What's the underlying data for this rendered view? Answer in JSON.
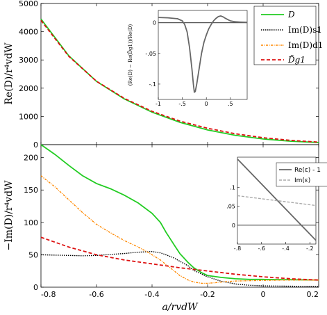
{
  "chart_data": [
    {
      "id": "top",
      "type": "line",
      "ylabel": "Re(D)/r⁴vdW",
      "xlim": [
        -0.8,
        0.2
      ],
      "ylim": [
        0,
        5000
      ],
      "yticks": [
        0,
        1000,
        2000,
        3000,
        4000,
        5000
      ],
      "xticks": [
        -0.8,
        -0.6,
        -0.4,
        -0.2,
        0,
        0.2
      ],
      "show_xticklabels": false,
      "legend": "top-right",
      "series": [
        {
          "name": "D",
          "color": "#22cc22",
          "dash": "",
          "width": 1.8,
          "x": [
            -0.8,
            -0.7,
            -0.6,
            -0.5,
            -0.4,
            -0.3,
            -0.2,
            -0.1,
            0,
            0.1,
            0.2
          ],
          "y": [
            4450,
            3150,
            2240,
            1620,
            1150,
            790,
            520,
            330,
            200,
            120,
            75
          ]
        },
        {
          "name": "Im(D)s1",
          "color": "#000000",
          "dash": "1.5,1.5",
          "width": 1.4,
          "legend_only": true,
          "x": [],
          "y": []
        },
        {
          "name": "Im(D)d1",
          "color": "#ff8800",
          "dash": "3,1.5,1,1.5",
          "width": 1.4,
          "legend_only": true,
          "x": [],
          "y": []
        },
        {
          "name": "D̃g1",
          "color": "#dd1111",
          "dash": "5,3",
          "width": 1.8,
          "x": [
            -0.8,
            -0.7,
            -0.6,
            -0.5,
            -0.4,
            -0.3,
            -0.2,
            -0.1,
            0,
            0.1,
            0.2
          ],
          "y": [
            4400,
            3130,
            2245,
            1640,
            1180,
            835,
            580,
            385,
            245,
            150,
            90
          ]
        }
      ],
      "inset": {
        "ylabel": "(Re(D) − Re(D̃g1))/Re(D)",
        "xlim": [
          -1,
          0.85
        ],
        "ylim": [
          -0.125,
          0.02
        ],
        "xticks": [
          -1,
          -0.5,
          0,
          0.5
        ],
        "yticks": [
          0,
          -0.05,
          -0.1
        ],
        "series": [
          {
            "name": "",
            "color": "#666666",
            "dash": "",
            "width": 1.8,
            "x": [
              -1,
              -0.8,
              -0.6,
              -0.5,
              -0.45,
              -0.4,
              -0.35,
              -0.3,
              -0.27,
              -0.25,
              -0.23,
              -0.2,
              -0.15,
              -0.1,
              -0.05,
              0,
              0.05,
              0.1,
              0.15,
              0.2,
              0.25,
              0.3,
              0.35,
              0.4,
              0.5,
              0.6,
              0.7,
              0.85
            ],
            "y": [
              0.0085,
              0.008,
              0.0065,
              0.003,
              -0.003,
              -0.015,
              -0.04,
              -0.075,
              -0.1,
              -0.113,
              -0.112,
              -0.1,
              -0.075,
              -0.05,
              -0.032,
              -0.02,
              -0.01,
              -0.003,
              0.003,
              0.007,
              0.01,
              0.011,
              0.0095,
              0.007,
              0.003,
              0.0015,
              0.001,
              0.0005
            ]
          }
        ],
        "hline": 0
      }
    },
    {
      "id": "bottom",
      "type": "line",
      "ylabel": "−Im(D)/r⁴vdW",
      "xlabel": "a/rvdW",
      "xlim": [
        -0.8,
        0.2
      ],
      "ylim": [
        0,
        220
      ],
      "yticks": [
        0,
        50,
        100,
        150,
        200
      ],
      "xticks": [
        -0.8,
        -0.6,
        -0.4,
        -0.2,
        0,
        0.2
      ],
      "xticklabels": [
        "-0.8",
        "-0.6",
        "-0.4",
        "-0.2",
        "0",
        "0.2"
      ],
      "show_xticklabels": true,
      "series": [
        {
          "name": "D",
          "color": "#22cc22",
          "dash": "",
          "width": 1.8,
          "x": [
            -0.8,
            -0.75,
            -0.7,
            -0.65,
            -0.6,
            -0.55,
            -0.5,
            -0.45,
            -0.4,
            -0.37,
            -0.35,
            -0.32,
            -0.3,
            -0.27,
            -0.25,
            -0.22,
            -0.2,
            -0.15,
            -0.1,
            -0.05,
            0,
            0.1,
            0.2
          ],
          "y": [
            220,
            205,
            188,
            172,
            160,
            152,
            142,
            130,
            114,
            100,
            85,
            65,
            52,
            38,
            30,
            22,
            18,
            15,
            13,
            12,
            12,
            11.5,
            11
          ]
        },
        {
          "name": "Im(D)s1",
          "color": "#000000",
          "dash": "1.5,1.5",
          "width": 1.4,
          "x": [
            -0.8,
            -0.75,
            -0.7,
            -0.65,
            -0.6,
            -0.55,
            -0.5,
            -0.45,
            -0.4,
            -0.37,
            -0.35,
            -0.32,
            -0.3,
            -0.27,
            -0.25,
            -0.22,
            -0.2,
            -0.15,
            -0.1,
            -0.05,
            0,
            0.1,
            0.2
          ],
          "y": [
            50,
            49.5,
            49,
            48.5,
            49,
            50.5,
            52,
            54,
            55,
            53,
            50,
            45,
            40,
            33,
            26,
            20,
            16,
            9,
            5,
            3,
            2,
            1.5,
            1
          ]
        },
        {
          "name": "Im(D)d1",
          "color": "#ff8800",
          "dash": "3,1.5,1,1.5",
          "width": 1.4,
          "x": [
            -0.8,
            -0.75,
            -0.7,
            -0.65,
            -0.6,
            -0.55,
            -0.5,
            -0.45,
            -0.42,
            -0.4,
            -0.37,
            -0.35,
            -0.32,
            -0.3,
            -0.27,
            -0.25,
            -0.22,
            -0.2,
            -0.17,
            -0.15,
            -0.1,
            -0.05,
            0,
            0.1,
            0.2
          ],
          "y": [
            172,
            155,
            135,
            115,
            97,
            84,
            72,
            62,
            55,
            50,
            42,
            35,
            25,
            18,
            11,
            8,
            6,
            6,
            7,
            8,
            9.5,
            10,
            10.5,
            11,
            11
          ]
        },
        {
          "name": "D̃g1",
          "color": "#dd1111",
          "dash": "5,3",
          "width": 1.8,
          "x": [
            -0.8,
            -0.7,
            -0.6,
            -0.5,
            -0.4,
            -0.3,
            -0.2,
            -0.1,
            0,
            0.1,
            0.2
          ],
          "y": [
            77,
            62,
            50,
            42,
            36,
            30,
            25,
            20,
            16,
            13,
            11
          ]
        }
      ],
      "inset": {
        "xlim": [
          -0.8,
          -0.15
        ],
        "ylim": [
          -0.05,
          0.18
        ],
        "xticks": [
          -0.8,
          -0.6,
          -0.4,
          -0.2
        ],
        "yticks": [
          0,
          0.05,
          0.1
        ],
        "legend": "top-right",
        "series": [
          {
            "name": "Re(ε) - 1",
            "color": "#666666",
            "dash": "",
            "width": 1.8,
            "x": [
              -0.8,
              -0.15
            ],
            "y": [
              0.175,
              -0.04
            ]
          },
          {
            "name": "Im(ε)",
            "color": "#aaaaaa",
            "dash": "4,2",
            "width": 1.4,
            "x": [
              -0.8,
              -0.15
            ],
            "y": [
              0.078,
              0.052
            ]
          }
        ],
        "hline": 0
      }
    }
  ]
}
